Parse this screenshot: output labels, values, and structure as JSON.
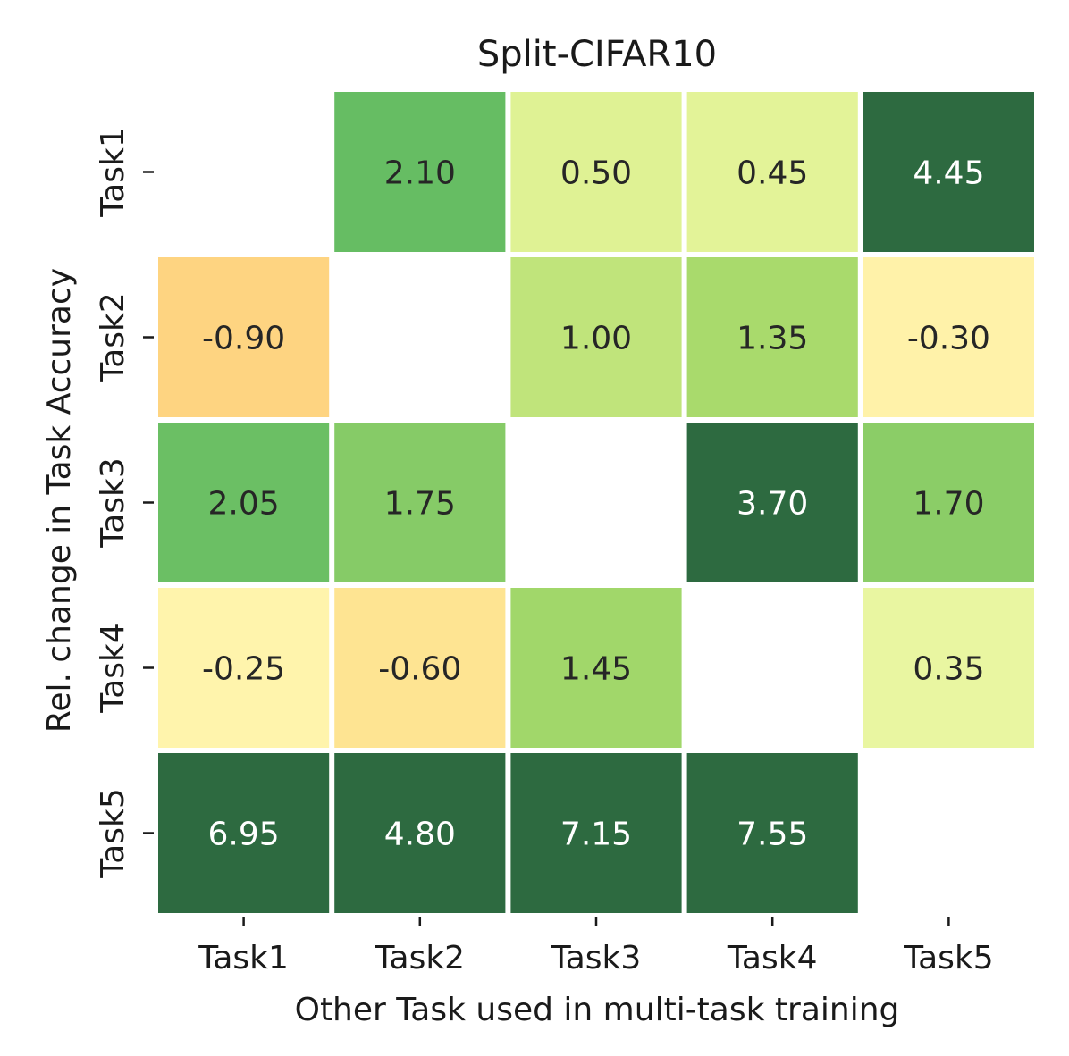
{
  "chart_data": {
    "type": "heatmap",
    "title": "Split-CIFAR10",
    "xlabel": "Other Task used in multi-task training",
    "ylabel": "Rel. change in Task Accuracy",
    "x_categories": [
      "Task1",
      "Task2",
      "Task3",
      "Task4",
      "Task5"
    ],
    "y_categories": [
      "Task1",
      "Task2",
      "Task3",
      "Task4",
      "Task5"
    ],
    "values": [
      [
        null,
        2.1,
        0.5,
        0.45,
        4.45
      ],
      [
        -0.9,
        null,
        1.0,
        1.35,
        -0.3
      ],
      [
        2.05,
        1.75,
        null,
        3.7,
        1.7
      ],
      [
        -0.25,
        -0.6,
        1.45,
        null,
        0.35
      ],
      [
        6.95,
        4.8,
        7.15,
        7.55,
        null
      ]
    ],
    "value_labels": [
      [
        "",
        "2.10",
        "0.50",
        "0.45",
        "4.45"
      ],
      [
        "-0.90",
        "",
        "1.00",
        "1.35",
        "-0.30"
      ],
      [
        "2.05",
        "1.75",
        "",
        "3.70",
        "1.70"
      ],
      [
        "-0.25",
        "-0.60",
        "1.45",
        "",
        "0.35"
      ],
      [
        "6.95",
        "4.80",
        "7.15",
        "7.55",
        ""
      ]
    ],
    "colormap": "RdYlGn",
    "color_range": [
      -2.5,
      3.0
    ],
    "grid": false,
    "legend": "none",
    "colors": {
      "neg_strong": "#f46d43",
      "neg_mid": "#fdae61",
      "neg_light": "#fee08b",
      "neutral": "#ffffbf",
      "pos_light": "#d9ef8b",
      "pos_mid": "#a6d96a",
      "pos_strong": "#66bd63",
      "pos_max": "#2d6a40",
      "text_dark": "#262626",
      "text_light": "#ffffff"
    }
  }
}
